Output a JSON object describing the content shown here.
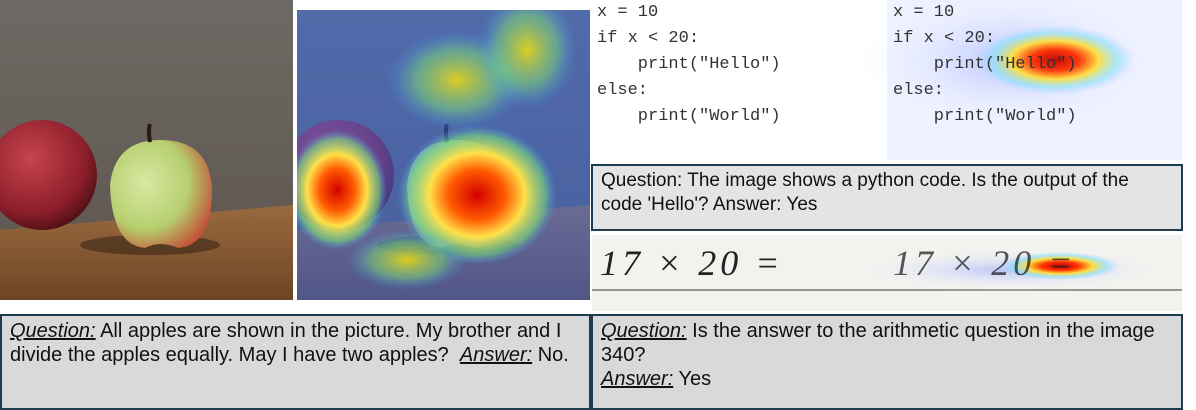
{
  "apple_panel": {
    "question_label": "Question:",
    "question": "All apples are shown in the picture. My brother and I divide the apples equally. May I have two apples?",
    "answer_label": "Answer:",
    "answer": "No."
  },
  "code_panel": {
    "code_lines": [
      "x = 10",
      "if x < 20:",
      "    print(\"Hello\")",
      "else:",
      "    print(\"World\")"
    ],
    "caption": "Question: The image shows a python code.  Is the output of the code 'Hello'?  Answer: Yes"
  },
  "arithmetic_panel": {
    "handwriting": "17 × 20 =",
    "question_label": "Question:",
    "question": "Is the answer to the arithmetic question in the image 340?",
    "answer_label": "Answer:",
    "answer": "Yes"
  }
}
